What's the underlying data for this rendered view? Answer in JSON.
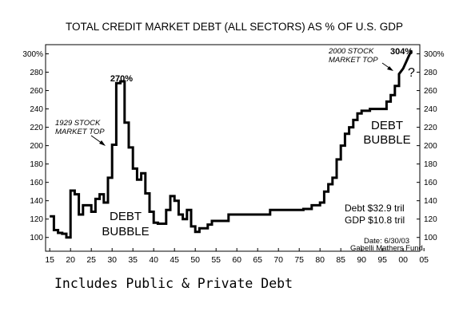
{
  "footer_note": "Includes Public & Private Debt",
  "chart_data": {
    "type": "line",
    "title": "TOTAL CREDIT MARKET DEBT (ALL SECTORS) AS % OF U.S. GDP",
    "xlabel": "",
    "ylabel": "",
    "xlim": [
      1915,
      2005
    ],
    "ylim": [
      85,
      310
    ],
    "grid": false,
    "left_ticks": [
      "300%",
      "280",
      "260",
      "240",
      "220",
      "200",
      "180",
      "160",
      "140",
      "120",
      "100"
    ],
    "right_ticks": [
      "300%",
      "280",
      "260",
      "240",
      "220",
      "200",
      "180",
      "160",
      "140",
      "120",
      "100"
    ],
    "tick_values": [
      300,
      280,
      260,
      240,
      220,
      200,
      180,
      160,
      140,
      120,
      100
    ],
    "x_tick_labels": [
      "15",
      "20",
      "25",
      "30",
      "35",
      "40",
      "45",
      "50",
      "55",
      "60",
      "65",
      "70",
      "75",
      "80",
      "85",
      "90",
      "95",
      "00",
      "05"
    ],
    "x_tick_values": [
      1916,
      1921,
      1926,
      1931,
      1936,
      1941,
      1946,
      1951,
      1956,
      1961,
      1966,
      1971,
      1976,
      1981,
      1986,
      1991,
      1996,
      2001,
      2006
    ],
    "series": [
      {
        "x": [
          1916,
          1917,
          1917,
          1918,
          1918,
          1919,
          1919,
          1920,
          1920,
          1921,
          1921,
          1922,
          1922,
          1923,
          1923,
          1924,
          1924,
          1926,
          1926,
          1927,
          1927,
          1928,
          1928,
          1929,
          1929,
          1930,
          1930,
          1931,
          1931,
          1932,
          1932,
          1933,
          1933,
          1934,
          1934,
          1935,
          1935,
          1936,
          1936,
          1937,
          1937,
          1938,
          1938,
          1939,
          1939,
          1940,
          1940,
          1941,
          1941,
          1942,
          1942,
          1944,
          1944,
          1945,
          1945,
          1946,
          1946,
          1947,
          1947,
          1948,
          1948,
          1949,
          1949,
          1950,
          1950,
          1951,
          1951,
          1952,
          1952,
          1954,
          1954,
          1955,
          1955,
          1959,
          1959,
          1969,
          1969,
          1977,
          1977,
          1979,
          1979,
          1981,
          1981,
          1982,
          1982,
          1983,
          1983,
          1984,
          1984,
          1985,
          1985,
          1986,
          1986,
          1987,
          1987,
          1988,
          1988,
          1989,
          1989,
          1990,
          1990,
          1991,
          1991,
          1993,
          1993,
          1997,
          1997,
          1998,
          1998,
          1999,
          1999,
          2000,
          2000,
          2001,
          2002,
          2003
        ],
        "y": [
          123,
          123,
          108,
          108,
          105,
          105,
          104,
          104,
          100,
          100,
          151,
          151,
          147,
          147,
          125,
          125,
          135,
          135,
          128,
          128,
          142,
          142,
          147,
          147,
          138,
          138,
          165,
          165,
          201,
          201,
          268,
          268,
          270,
          270,
          225,
          225,
          198,
          198,
          175,
          175,
          163,
          163,
          170,
          170,
          148,
          148,
          128,
          128,
          116,
          116,
          115,
          115,
          130,
          130,
          145,
          145,
          140,
          140,
          125,
          125,
          120,
          120,
          130,
          130,
          112,
          112,
          106,
          106,
          110,
          110,
          114,
          114,
          118,
          118,
          125,
          125,
          130,
          130,
          131,
          131,
          135,
          135,
          138,
          138,
          150,
          150,
          158,
          158,
          165,
          165,
          185,
          185,
          200,
          200,
          213,
          213,
          220,
          220,
          228,
          228,
          235,
          235,
          238,
          238,
          240,
          240,
          248,
          248,
          255,
          255,
          265,
          265,
          278,
          284,
          294,
          304
        ]
      }
    ],
    "annotations": {
      "peak_1933_label": "270%",
      "peak_2003_label": "304%",
      "top_1929_line1": "1929 STOCK",
      "top_1929_line2": "MARKET TOP",
      "top_2000_line1": "2000 STOCK",
      "top_2000_line2": "MARKET TOP",
      "question_mark": "?",
      "bubble_left_line1": "DEBT",
      "bubble_left_line2": "BUBBLE",
      "bubble_right_line1": "DEBT",
      "bubble_right_line2": "BUBBLE",
      "debt_total": "Debt $32.9 tril",
      "gdp_total": "GDP $10.8 tril",
      "date_line": "Date: 6/30/03",
      "source_line": "Gabelli Mathers Fund"
    }
  }
}
